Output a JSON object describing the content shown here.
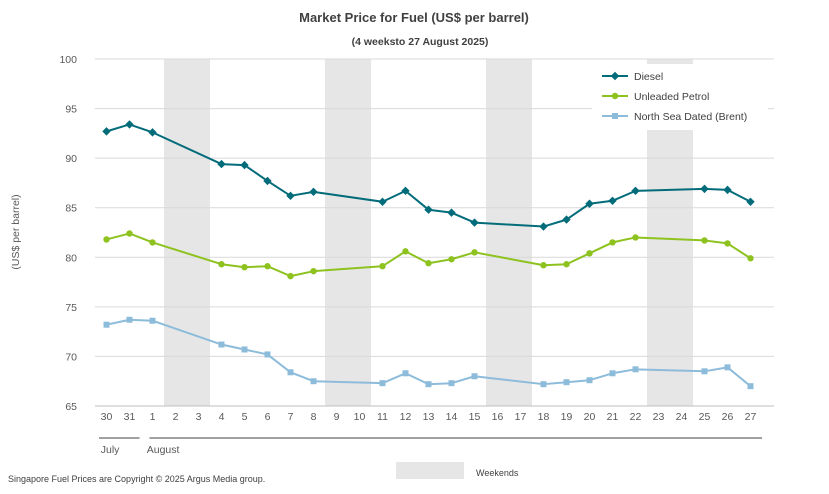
{
  "chart_data": {
    "type": "line",
    "title": "Market Price for Fuel (US$ per barrel)",
    "subtitle": "(4 weeksto 27 August 2025)",
    "ylabel": "(US$ per barrel)",
    "xlabel": "",
    "ylim": [
      65,
      100
    ],
    "yticks": [
      65,
      70,
      75,
      80,
      85,
      90,
      95,
      100
    ],
    "grid": true,
    "legend_position": "top-right",
    "categories": [
      "30",
      "31",
      "1",
      "2",
      "3",
      "4",
      "5",
      "6",
      "7",
      "8",
      "9",
      "10",
      "11",
      "12",
      "13",
      "14",
      "15",
      "16",
      "17",
      "18",
      "19",
      "20",
      "21",
      "22",
      "23",
      "24",
      "25",
      "26",
      "27"
    ],
    "month_labels": [
      {
        "label": "July",
        "start": "30",
        "end": "31"
      },
      {
        "label": "August",
        "start": "1",
        "end": "27"
      }
    ],
    "weekend_days": [
      [
        "2",
        "3"
      ],
      [
        "9",
        "10"
      ],
      [
        "16",
        "17"
      ],
      [
        "23",
        "24"
      ]
    ],
    "weekend_legend": "Weekends",
    "series": [
      {
        "name": "Diesel",
        "color": "#036c7a",
        "marker": "diamond",
        "values": [
          92.7,
          93.4,
          92.6,
          null,
          null,
          89.4,
          89.3,
          87.7,
          86.2,
          86.6,
          null,
          null,
          85.6,
          86.7,
          84.8,
          84.5,
          83.5,
          null,
          null,
          83.1,
          83.8,
          85.4,
          85.7,
          86.7,
          null,
          null,
          86.9,
          86.8,
          85.6
        ]
      },
      {
        "name": "Unleaded Petrol",
        "color": "#8dc21f",
        "marker": "circle",
        "values": [
          81.8,
          82.4,
          81.5,
          null,
          null,
          79.3,
          79.0,
          79.1,
          78.1,
          78.6,
          null,
          null,
          79.1,
          80.6,
          79.4,
          79.8,
          80.5,
          null,
          null,
          79.2,
          79.3,
          80.4,
          81.5,
          82.0,
          null,
          null,
          81.7,
          81.4,
          79.9
        ]
      },
      {
        "name": "North Sea Dated (Brent)",
        "color": "#8dbcdb",
        "marker": "square",
        "values": [
          73.2,
          73.7,
          73.6,
          null,
          null,
          71.2,
          70.7,
          70.2,
          68.4,
          67.5,
          null,
          null,
          67.3,
          68.3,
          67.2,
          67.3,
          68.0,
          null,
          null,
          67.2,
          67.4,
          67.6,
          68.3,
          68.7,
          null,
          null,
          68.5,
          68.9,
          67.0
        ]
      }
    ]
  },
  "footer": {
    "copyright": "Singapore Fuel Prices are Copyright © 2025 Argus Media group."
  }
}
